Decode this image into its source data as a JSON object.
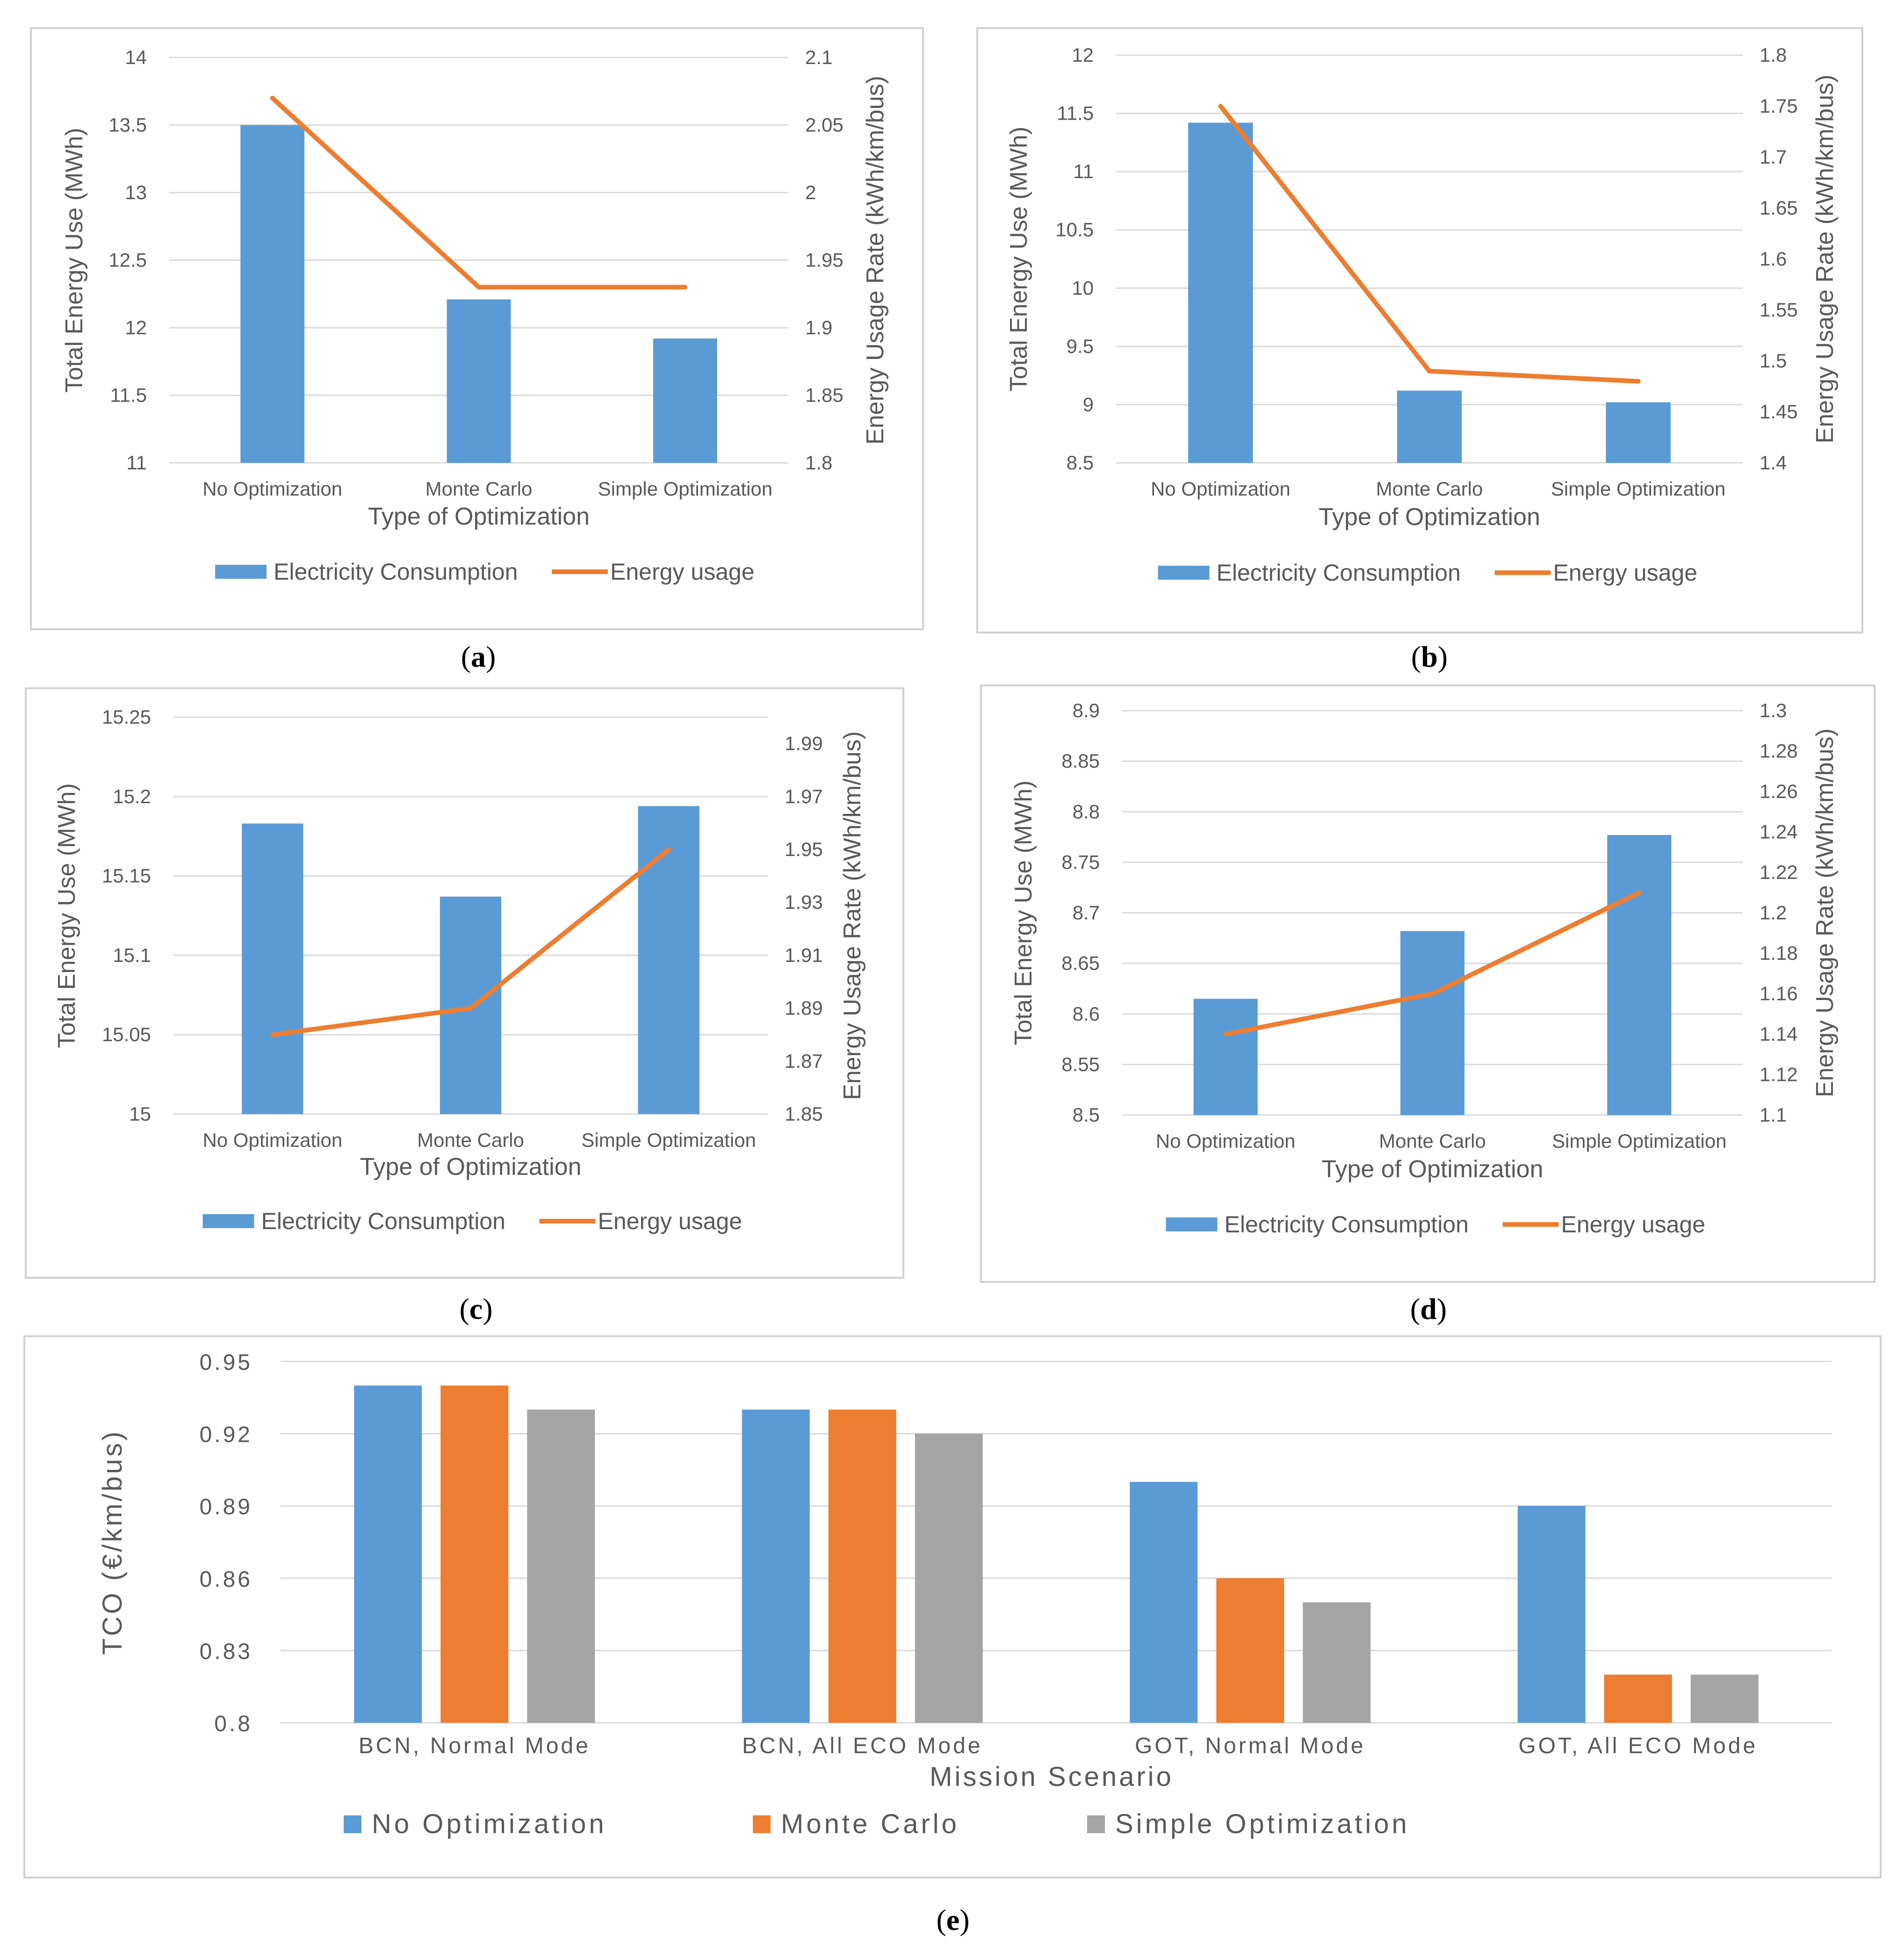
{
  "colors": {
    "electricity": "#5b9bd5",
    "energy_usage": "#ed7d31",
    "no_optimization": "#5b9bd5",
    "monte_carlo": "#ed7d31",
    "simple_optimization": "#a5a5a5"
  },
  "chart_data": [
    {
      "id": "a",
      "type": "bar+line",
      "panel_label": "a",
      "categories": [
        "No Optimization",
        "Monte Carlo",
        "Simple Optimization"
      ],
      "series": [
        {
          "name": "Electricity Consumption",
          "kind": "bar",
          "axis": "left",
          "values": [
            13.5,
            12.21,
            11.92
          ]
        },
        {
          "name": "Energy usage",
          "kind": "line",
          "axis": "right",
          "values": [
            2.07,
            1.93,
            1.93
          ]
        }
      ],
      "xlabel": "Type of Optimization",
      "ylabel": "Total Energy Use (MWh)",
      "y2label": "Energy Usage Rate (kWh/km/bus)",
      "ylim": [
        11,
        14
      ],
      "y_ticks": [
        "11",
        "11.5",
        "12",
        "12.5",
        "13",
        "13.5",
        "14"
      ],
      "y2lim": [
        1.8,
        2.1
      ],
      "y2_ticks": [
        "1.8",
        "1.85",
        "1.9",
        "1.95",
        "2",
        "2.05",
        "2.1"
      ],
      "legend": [
        "Electricity Consumption",
        "Energy usage"
      ],
      "legend_position": "bottom"
    },
    {
      "id": "b",
      "type": "bar+line",
      "panel_label": "b",
      "categories": [
        "No Optimization",
        "Monte Carlo",
        "Simple Optimization"
      ],
      "series": [
        {
          "name": "Electricity Consumption",
          "kind": "bar",
          "axis": "left",
          "values": [
            11.42,
            9.12,
            9.02
          ]
        },
        {
          "name": "Energy usage",
          "kind": "line",
          "axis": "right",
          "values": [
            1.75,
            1.49,
            1.48
          ]
        }
      ],
      "xlabel": "Type of Optimization",
      "ylabel": "Total Energy Use (MWh)",
      "y2label": "Energy Usage Rate (kWh/km/bus)",
      "ylim": [
        8.5,
        12
      ],
      "y_ticks": [
        "8.5",
        "9",
        "9.5",
        "10",
        "10.5",
        "11",
        "11.5",
        "12"
      ],
      "y2lim": [
        1.4,
        1.8
      ],
      "y2_ticks": [
        "1.4",
        "1.45",
        "1.5",
        "1.55",
        "1.6",
        "1.65",
        "1.7",
        "1.75",
        "1.8"
      ],
      "legend": [
        "Electricity Consumption",
        "Energy usage"
      ],
      "legend_position": "bottom"
    },
    {
      "id": "c",
      "type": "bar+line",
      "panel_label": "c",
      "categories": [
        "No Optimization",
        "Monte Carlo",
        "Simple Optimization"
      ],
      "series": [
        {
          "name": "Electricity Consumption",
          "kind": "bar",
          "axis": "left",
          "values": [
            15.183,
            15.137,
            15.194
          ]
        },
        {
          "name": "Energy usage",
          "kind": "line",
          "axis": "right",
          "values": [
            1.88,
            1.89,
            1.95
          ]
        }
      ],
      "xlabel": "Type of Optimization",
      "ylabel": "Total Energy Use (MWh)",
      "y2label": "Energy Usage Rate (kWh/km/bus)",
      "ylim": [
        15,
        15.25
      ],
      "y_ticks": [
        "15",
        "15.05",
        "15.1",
        "15.15",
        "15.2",
        "15.25"
      ],
      "y2lim": [
        1.85,
        2.0
      ],
      "y2_ticks": [
        "1.85",
        "1.87",
        "1.89",
        "1.91",
        "1.93",
        "1.95",
        "1.97",
        "1.99"
      ],
      "legend": [
        "Electricity Consumption",
        "Energy usage"
      ],
      "legend_position": "bottom"
    },
    {
      "id": "d",
      "type": "bar+line",
      "panel_label": "d",
      "categories": [
        "No Optimization",
        "Monte Carlo",
        "Simple Optimization"
      ],
      "series": [
        {
          "name": "Electricity Consumption",
          "kind": "bar",
          "axis": "left",
          "values": [
            8.615,
            8.682,
            8.777
          ]
        },
        {
          "name": "Energy usage",
          "kind": "line",
          "axis": "right",
          "values": [
            1.14,
            1.16,
            1.21
          ]
        }
      ],
      "xlabel": "Type of Optimization",
      "ylabel": "Total Energy Use (MWh)",
      "y2label": "Energy Usage Rate (kWh/km/bus)",
      "ylim": [
        8.5,
        8.9
      ],
      "y_ticks": [
        "8.5",
        "8.55",
        "8.6",
        "8.65",
        "8.7",
        "8.75",
        "8.8",
        "8.85",
        "8.9"
      ],
      "y2lim": [
        1.1,
        1.3
      ],
      "y2_ticks": [
        "1.1",
        "1.12",
        "1.14",
        "1.16",
        "1.18",
        "1.2",
        "1.22",
        "1.24",
        "1.26",
        "1.28",
        "1.3"
      ],
      "legend": [
        "Electricity Consumption",
        "Energy usage"
      ],
      "legend_position": "bottom"
    },
    {
      "id": "e",
      "type": "bar",
      "panel_label": "e",
      "categories": [
        "BCN, Normal Mode",
        "BCN, All ECO Mode",
        "GOT, Normal Mode",
        "GOT, All ECO Mode"
      ],
      "series": [
        {
          "name": "No Optimization",
          "values": [
            0.94,
            0.93,
            0.9,
            0.89
          ]
        },
        {
          "name": "Monte Carlo",
          "values": [
            0.94,
            0.93,
            0.86,
            0.82
          ]
        },
        {
          "name": "Simple Optimization",
          "values": [
            0.93,
            0.92,
            0.85,
            0.82
          ]
        }
      ],
      "xlabel": "Mission Scenario",
      "ylabel": "TCO (€/km/bus)",
      "ylim": [
        0.8,
        0.95
      ],
      "y_ticks": [
        "0.8",
        "0.83",
        "0.86",
        "0.89",
        "0.92",
        "0.95"
      ],
      "legend": [
        "No Optimization",
        "Monte Carlo",
        "Simple Optimization"
      ],
      "legend_position": "bottom"
    }
  ]
}
